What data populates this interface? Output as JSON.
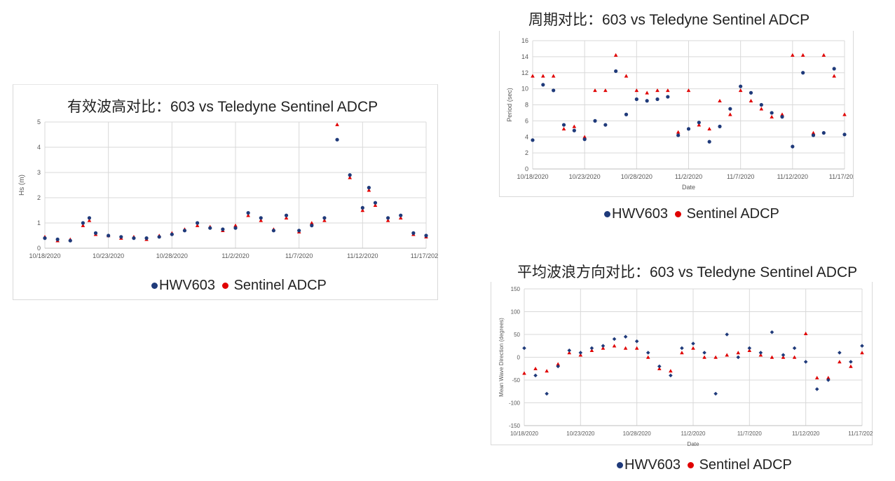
{
  "colors": {
    "hwv603": "#1f3a7a",
    "sentinel": "#e00000",
    "grid": "#d9d9d9",
    "axis": "#595959"
  },
  "legend": {
    "series_a": "HWV603",
    "series_b": "Sentinel ADCP"
  },
  "charts": {
    "hs": {
      "title": "有效波高对比：603 vs Teledyne Sentinel ADCP"
    },
    "period": {
      "title": "周期对比：603 vs Teledyne Sentinel ADCP"
    },
    "direction": {
      "title": "平均波浪方向对比：603 vs Teledyne Sentinel ADCP"
    }
  },
  "chart_data": [
    {
      "id": "hs",
      "type": "scatter",
      "title": "有效波高对比：603 vs Teledyne Sentinel ADCP",
      "xlabel": "",
      "ylabel": "Hs (m)",
      "xlim": [
        "10/18/2020",
        "11/17/2020"
      ],
      "ylim": [
        0,
        5
      ],
      "yticks": [
        0,
        1,
        2,
        3,
        4,
        5
      ],
      "xticks": [
        "10/18/2020",
        "10/23/2020",
        "10/28/2020",
        "11/2/2020",
        "11/7/2020",
        "11/12/2020",
        "11/17/2020"
      ],
      "grid": true,
      "legend_position": "bottom",
      "series": [
        {
          "name": "HWV603",
          "marker": "circle",
          "x": [
            0,
            1,
            2,
            3,
            3.5,
            4,
            5,
            6,
            7,
            8,
            9,
            10,
            11,
            12,
            13,
            14,
            15,
            16,
            17,
            18,
            19,
            20,
            21,
            22,
            23,
            24,
            25,
            25.5,
            26,
            27,
            28,
            29,
            30
          ],
          "y": [
            0.4,
            0.35,
            0.3,
            1.0,
            1.2,
            0.6,
            0.5,
            0.45,
            0.4,
            0.4,
            0.45,
            0.55,
            0.7,
            1.0,
            0.8,
            0.75,
            0.8,
            1.4,
            1.2,
            0.7,
            1.3,
            0.7,
            0.9,
            1.2,
            4.3,
            2.9,
            1.6,
            2.4,
            1.8,
            1.2,
            1.3,
            0.6,
            0.5
          ]
        },
        {
          "name": "Sentinel ADCP",
          "marker": "triangle",
          "x": [
            0,
            1,
            2,
            3,
            3.5,
            4,
            5,
            6,
            7,
            8,
            9,
            10,
            11,
            12,
            13,
            14,
            15,
            16,
            17,
            18,
            19,
            20,
            21,
            22,
            23,
            24,
            25,
            25.5,
            26,
            27,
            28,
            29,
            30
          ],
          "y": [
            0.45,
            0.3,
            0.35,
            0.9,
            1.1,
            0.55,
            0.5,
            0.4,
            0.45,
            0.35,
            0.5,
            0.6,
            0.75,
            0.9,
            0.85,
            0.7,
            0.9,
            1.3,
            1.1,
            0.75,
            1.2,
            0.65,
            1.0,
            1.1,
            4.9,
            2.8,
            1.5,
            2.3,
            1.7,
            1.1,
            1.2,
            0.55,
            0.45
          ]
        }
      ]
    },
    {
      "id": "period",
      "type": "scatter",
      "title": "周期对比：603 vs Teledyne Sentinel ADCP",
      "xlabel": "Date",
      "ylabel": "Period (sec)",
      "xlim": [
        "10/18/2020",
        "11/17/2020"
      ],
      "ylim": [
        0,
        16
      ],
      "yticks": [
        0,
        2,
        4,
        6,
        8,
        10,
        12,
        14,
        16
      ],
      "xticks": [
        "10/18/2020",
        "10/23/2020",
        "10/28/2020",
        "11/2/2020",
        "11/7/2020",
        "11/12/2020",
        "11/17/2020"
      ],
      "grid": true,
      "legend_position": "bottom",
      "series": [
        {
          "name": "HWV603",
          "marker": "circle",
          "x": [
            0,
            1,
            2,
            3,
            4,
            5,
            6,
            7,
            8,
            9,
            10,
            11,
            12,
            13,
            14,
            15,
            16,
            17,
            18,
            19,
            20,
            21,
            22,
            23,
            24,
            25,
            26,
            27,
            28,
            29,
            30
          ],
          "y": [
            3.6,
            10.5,
            9.8,
            5.5,
            4.8,
            3.7,
            6.0,
            5.5,
            12.2,
            6.8,
            8.7,
            8.5,
            8.7,
            9.0,
            4.2,
            5.0,
            5.8,
            3.4,
            5.3,
            7.5,
            10.3,
            9.5,
            8.0,
            7.0,
            6.5,
            2.8,
            12.0,
            4.2,
            4.5,
            12.5,
            4.3
          ]
        },
        {
          "name": "Sentinel ADCP",
          "marker": "triangle",
          "x": [
            0,
            1,
            2,
            3,
            4,
            5,
            6,
            7,
            8,
            9,
            10,
            11,
            12,
            13,
            14,
            15,
            16,
            17,
            18,
            19,
            20,
            21,
            22,
            23,
            24,
            25,
            26,
            27,
            28,
            29,
            30
          ],
          "y": [
            11.6,
            11.6,
            11.6,
            5.0,
            5.3,
            4.0,
            9.8,
            9.8,
            14.2,
            11.6,
            9.8,
            9.5,
            9.8,
            9.8,
            4.6,
            9.8,
            5.5,
            5.0,
            8.5,
            6.8,
            9.8,
            8.5,
            7.5,
            6.5,
            6.8,
            14.2,
            14.2,
            4.5,
            14.2,
            11.6,
            6.8
          ]
        }
      ]
    },
    {
      "id": "direction",
      "type": "scatter",
      "title": "平均波浪方向对比：603 vs Teledyne Sentinel ADCP",
      "xlabel": "Date",
      "ylabel": "Mean Wave Direction (degrees)",
      "xlim": [
        "10/18/2020",
        "11/17/2020"
      ],
      "ylim": [
        -150,
        150
      ],
      "yticks": [
        -150,
        -100,
        -50,
        0,
        50,
        100,
        150
      ],
      "xticks": [
        "10/18/2020",
        "10/23/2020",
        "10/28/2020",
        "11/2/2020",
        "11/7/2020",
        "11/12/2020",
        "11/17/2020"
      ],
      "grid": true,
      "legend_position": "bottom",
      "series": [
        {
          "name": "HWV603",
          "marker": "diamond",
          "x": [
            0,
            1,
            2,
            3,
            4,
            5,
            6,
            7,
            8,
            9,
            10,
            11,
            12,
            13,
            14,
            15,
            16,
            17,
            18,
            19,
            20,
            21,
            22,
            23,
            24,
            25,
            26,
            27,
            28,
            29,
            30
          ],
          "y": [
            20,
            -40,
            -80,
            -20,
            15,
            10,
            20,
            25,
            40,
            45,
            35,
            10,
            -20,
            -40,
            20,
            30,
            10,
            -80,
            50,
            0,
            20,
            10,
            55,
            5,
            20,
            -10,
            -70,
            -50,
            10,
            -10,
            25
          ]
        },
        {
          "name": "Sentinel ADCP",
          "marker": "triangle",
          "x": [
            0,
            1,
            2,
            3,
            4,
            5,
            6,
            7,
            8,
            9,
            10,
            11,
            12,
            13,
            14,
            15,
            16,
            17,
            18,
            19,
            20,
            21,
            22,
            23,
            24,
            25,
            26,
            27,
            28,
            29,
            30
          ],
          "y": [
            -35,
            -25,
            -30,
            -15,
            10,
            5,
            15,
            20,
            25,
            20,
            20,
            0,
            -25,
            -30,
            10,
            20,
            0,
            0,
            5,
            10,
            15,
            5,
            0,
            0,
            0,
            52,
            -45,
            -45,
            -10,
            -20,
            10
          ]
        }
      ]
    }
  ]
}
